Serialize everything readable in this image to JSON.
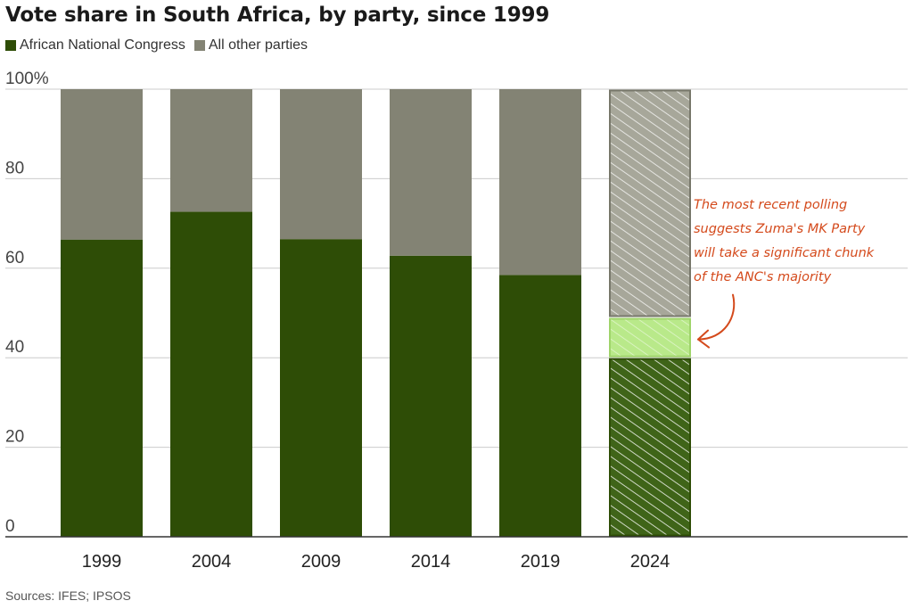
{
  "title": "Vote share in South Africa, by party, since 1999",
  "source": "Sources: IFES; IPSOS",
  "colors": {
    "anc": "#2e4d06",
    "other": "#838374",
    "mk": "#b9e98a",
    "annotation": "#d44a1c",
    "grid": "#cccccc"
  },
  "legend": [
    {
      "label": "African National Congress",
      "color": "#2e4d06"
    },
    {
      "label": "All other parties",
      "color": "#838374"
    }
  ],
  "chart_data": {
    "type": "bar",
    "stacked": true,
    "title": "Vote share in South Africa, by party, since 1999",
    "categories": [
      "1999",
      "2004",
      "2009",
      "2014",
      "2019",
      "2024"
    ],
    "series": [
      {
        "name": "African National Congress",
        "values": [
          66.4,
          72.6,
          66.5,
          62.8,
          58.5,
          40
        ]
      },
      {
        "name": "",
        "values": [
          0,
          0,
          0,
          0,
          0,
          9
        ]
      },
      {
        "name": "All other parties",
        "values": [
          33.6,
          27.4,
          33.5,
          37.2,
          41.5,
          51
        ]
      }
    ],
    "y_ticks": [
      {
        "value": 0,
        "label": "0"
      },
      {
        "value": 20,
        "label": "20"
      },
      {
        "value": 40,
        "label": "40"
      },
      {
        "value": 60,
        "label": "60"
      },
      {
        "value": 80,
        "label": "80"
      },
      {
        "value": 100,
        "label": "100%"
      }
    ],
    "ylim": [
      0,
      100
    ],
    "grid": true,
    "legend_position": "top-left",
    "projected_category": "2024",
    "annotation": {
      "lines": [
        "The most recent polling",
        "suggests Zuma's MK Party",
        "will take a significant chunk",
        "of the ANC's majority"
      ],
      "points_to": "MK Party segment of 2024 bar"
    }
  }
}
